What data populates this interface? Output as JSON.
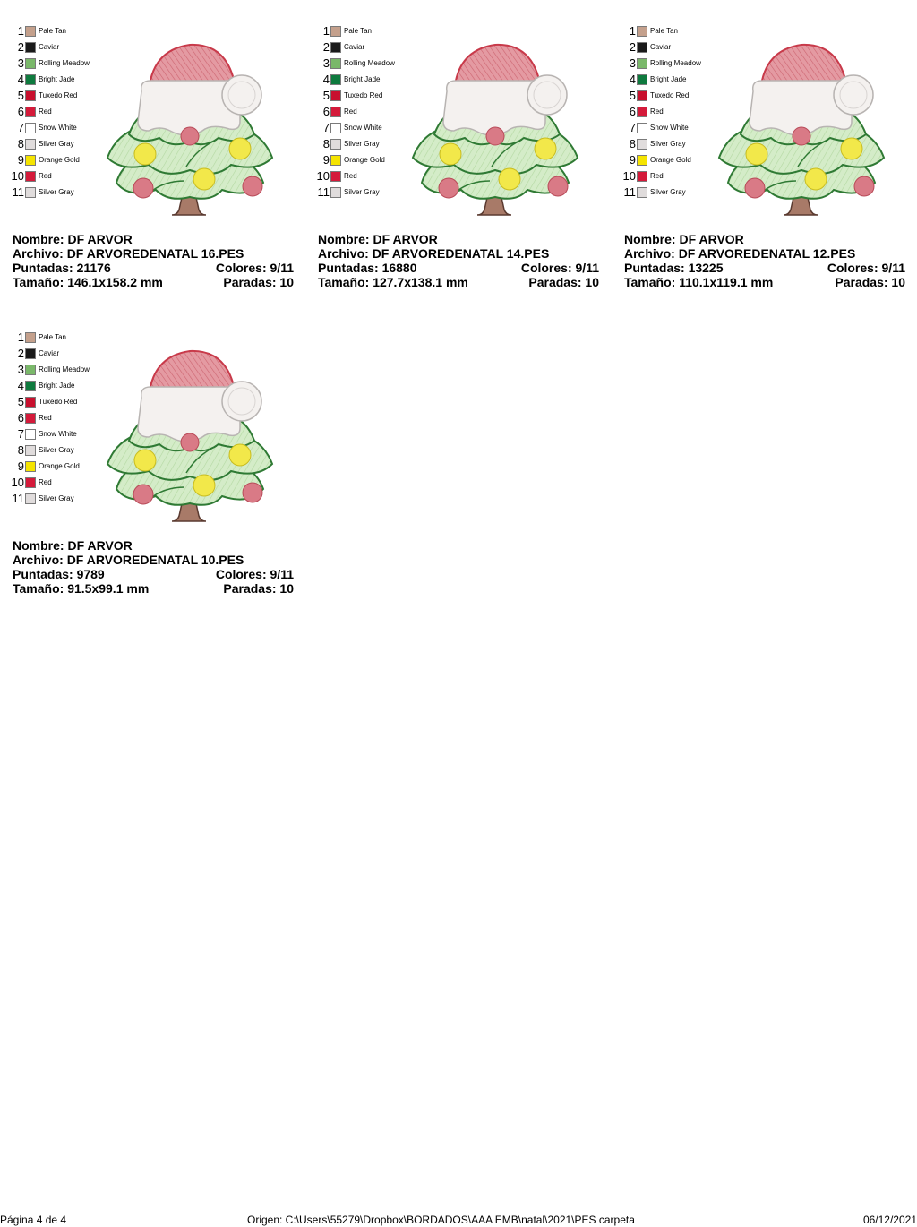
{
  "labels": {
    "nombre": "Nombre:",
    "archivo": "Archivo:",
    "puntadas": "Puntadas:",
    "colores": "Colores:",
    "tamano": "Tamaño:",
    "paradas": "Paradas:"
  },
  "palette": [
    {
      "num": "1",
      "name": "Pale Tan",
      "color": "#c4a08c"
    },
    {
      "num": "2",
      "name": "Caviar",
      "color": "#1a1a1a"
    },
    {
      "num": "3",
      "name": "Rolling Meadow",
      "color": "#7ab86a"
    },
    {
      "num": "4",
      "name": "Bright Jade",
      "color": "#0e7a3e"
    },
    {
      "num": "5",
      "name": "Tuxedo Red",
      "color": "#c8102e"
    },
    {
      "num": "6",
      "name": "Red",
      "color": "#d41a3a"
    },
    {
      "num": "7",
      "name": "Snow White",
      "color": "#ffffff"
    },
    {
      "num": "8",
      "name": "Silver Gray",
      "color": "#e0dcdc"
    },
    {
      "num": "9",
      "name": "Orange Gold",
      "color": "#f5e400"
    },
    {
      "num": "10",
      "name": "Red",
      "color": "#d41a3a"
    },
    {
      "num": "11",
      "name": "Silver Gray",
      "color": "#e0dcdc"
    }
  ],
  "designs": [
    {
      "nombre": "DF ARVOR",
      "archivo": "DF ARVOREDENATAL 16.PES",
      "puntadas": "21176",
      "colores": "9/11",
      "tamano": "146.1x158.2 mm",
      "paradas": "10"
    },
    {
      "nombre": "DF ARVOR",
      "archivo": "DF ARVOREDENATAL 14.PES",
      "puntadas": "16880",
      "colores": "9/11",
      "tamano": "127.7x138.1 mm",
      "paradas": "10"
    },
    {
      "nombre": "DF ARVOR",
      "archivo": "DF ARVOREDENATAL 12.PES",
      "puntadas": "13225",
      "colores": "9/11",
      "tamano": "110.1x119.1 mm",
      "paradas": "10"
    },
    {
      "nombre": "DF ARVOR",
      "archivo": "DF ARVOREDENATAL 10.PES",
      "puntadas": "9789",
      "colores": "9/11",
      "tamano": "91.5x99.1 mm",
      "paradas": "10"
    }
  ],
  "footer": {
    "page": "Página 4 de 4",
    "origin": "Origen: C:\\Users\\55279\\Dropbox\\BORDADOS\\AAA EMB\\natal\\2021\\PES carpeta",
    "date": "06/12/2021"
  }
}
